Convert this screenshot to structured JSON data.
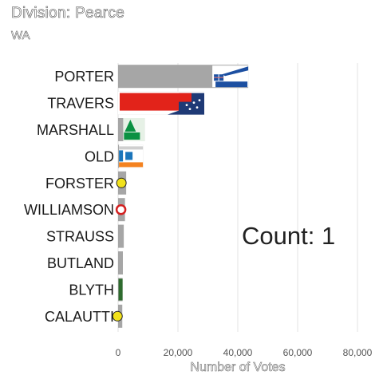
{
  "title": "Division: Pearce",
  "subtitle": "WA",
  "counter": {
    "label": "Count:",
    "value": "1"
  },
  "chart_data": {
    "type": "bar",
    "orientation": "horizontal",
    "xlabel": "Number of Votes",
    "ylabel": "",
    "xlim": [
      0,
      80000
    ],
    "xticks": [
      0,
      20000,
      40000,
      60000,
      80000
    ],
    "xtick_labels": [
      "0",
      "20,000",
      "40,000",
      "60,000",
      "80,000"
    ],
    "grid": true,
    "categories": [
      "PORTER",
      "TRAVERS",
      "MARSHALL",
      "OLD",
      "FORSTER",
      "WILLIAMSON",
      "STRAUSS",
      "BUTLAND",
      "BLYTH",
      "CALAUTTI"
    ],
    "values": [
      43500,
      28800,
      8900,
      8300,
      2700,
      2300,
      1900,
      1600,
      1500,
      1400
    ],
    "party_logos": [
      "liberal-logo",
      "labor-logo",
      "greens-logo",
      "one-nation-logo",
      "yellow-party-logo",
      "red-party-logo",
      "",
      "",
      "green-party-logo",
      "yellow-party-logo"
    ],
    "bar_color": "#a6a6a6"
  },
  "colors": {
    "liberal_blue": "#1c4fa1",
    "labor_red": "#e2231a",
    "labor_navy": "#1f3a76",
    "greens_green": "#0a9142",
    "one_nation_orange": "#f4821f",
    "one_nation_blue": "#1a75bb",
    "grid": "#e3e3e3"
  }
}
